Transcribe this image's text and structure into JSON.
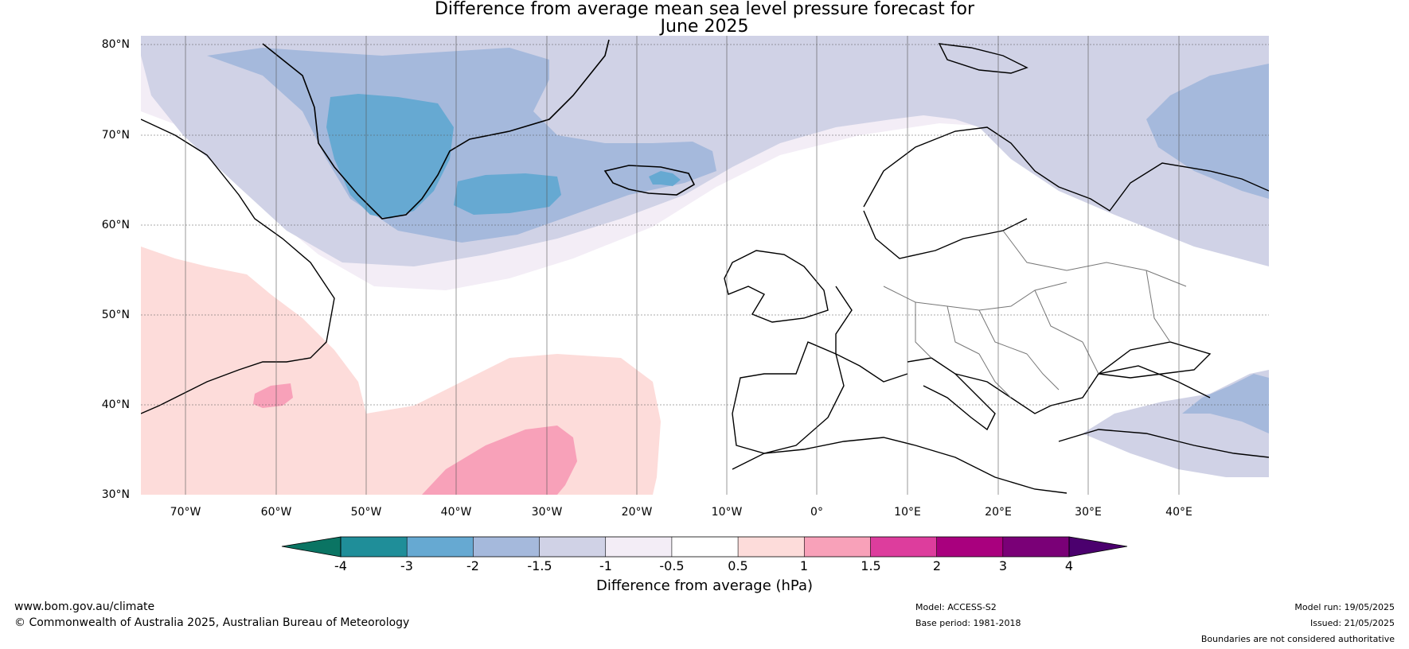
{
  "title": {
    "line1": "Difference from average mean sea level pressure forecast for",
    "line2": "June 2025"
  },
  "axes": {
    "lat_labels": [
      "80°N",
      "70°N",
      "60°N",
      "50°N",
      "40°N",
      "30°N"
    ],
    "lon_labels": [
      "70°W",
      "60°W",
      "50°W",
      "40°W",
      "30°W",
      "20°W",
      "10°W",
      "0°",
      "10°E",
      "20°E",
      "30°E",
      "40°E"
    ]
  },
  "legend": {
    "ticks": [
      "-4",
      "-3",
      "-2",
      "-1.5",
      "-1",
      "-0.5",
      "0.5",
      "1",
      "1.5",
      "2",
      "3",
      "4"
    ],
    "colors": [
      "#1f8e99",
      "#66a9d2",
      "#a5b9dc",
      "#d0d2e6",
      "#f3edf6",
      "#ffffff",
      "#fddcda",
      "#f8a1b9",
      "#dd3d9d",
      "#a9007e",
      "#7a0077"
    ],
    "extend_low_color": "#0a7463",
    "extend_high_color": "#4b006e",
    "label": "Difference from average (hPa)"
  },
  "map": {
    "extent": {
      "lon_min": -75,
      "lon_max": 50,
      "lat_min": 30,
      "lat_max": 80
    },
    "background_color": "#ffffff",
    "coastline_color": "#000000",
    "border_color": "#777777",
    "gridline_color": "#555555"
  },
  "footer": {
    "website": "www.bom.gov.au/climate",
    "copyright": "© Commonwealth of Australia 2025, Australian Bureau of Meteorology",
    "model": "Model: ACCESS-S2",
    "base_period": "Base period: 1981-2018",
    "model_run": "Model run: 19/05/2025",
    "issued": "Issued: 21/05/2025",
    "disclaimer": "Boundaries are not considered authoritative"
  }
}
